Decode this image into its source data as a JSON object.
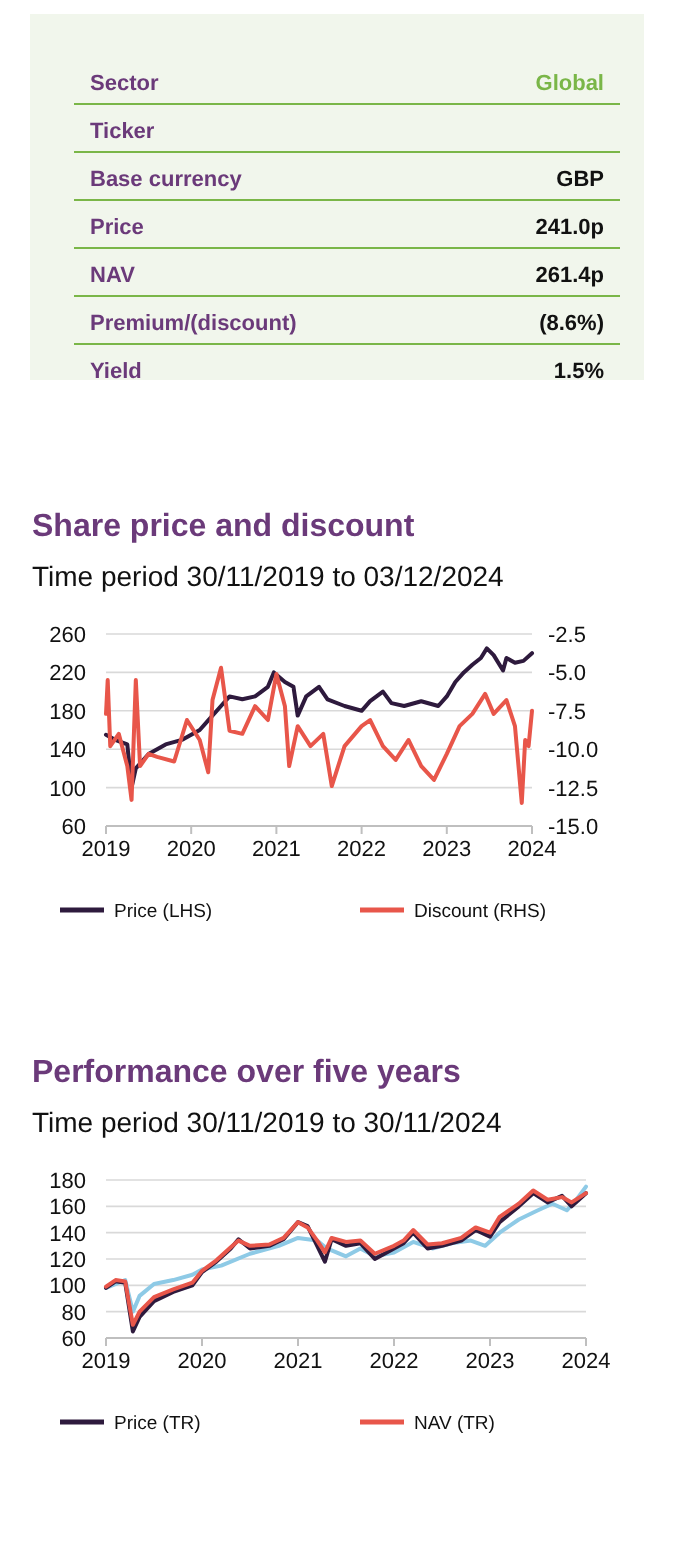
{
  "chart_data": [
    {
      "type": "other",
      "categories": [
        "Sector",
        "Ticker",
        "Base currency",
        "Price",
        "NAV",
        "Premium/(discount)",
        "Yield"
      ],
      "value_labels": [
        "Global",
        null,
        "GBP",
        "241.0p",
        "261.4p",
        "(8.6%)",
        "1.5%"
      ]
    },
    {
      "type": "line",
      "title": "Share price and discount",
      "subtitle": "Time period 30/11/2019 to 03/12/2024",
      "xlim": [
        2019,
        2024
      ],
      "xticks": [
        2019,
        2020,
        2021,
        2022,
        2023,
        2024
      ],
      "ylim": [
        60,
        260
      ],
      "yticks": [
        60,
        100,
        140,
        180,
        220,
        260
      ],
      "y2lim": [
        -15,
        -2.5
      ],
      "y2ticks": [
        {
          "value": -15,
          "label": "-15.0"
        },
        -12.5,
        {
          "value": -10,
          "label": "-10.0"
        },
        -7.5,
        {
          "value": -5,
          "label": "-5.0"
        },
        -2.5
      ],
      "grid": "y",
      "legend": "bottom",
      "series": [
        {
          "name": "Price (LHS)",
          "color": "#2e1a3d",
          "x": [
            2019.0,
            2019.1,
            2019.25,
            2019.3,
            2019.35,
            2019.5,
            2019.7,
            2019.9,
            2020.1,
            2020.2,
            2020.35,
            2020.45,
            2020.6,
            2020.75,
            2020.9,
            2020.97,
            2021.1,
            2021.2,
            2021.25,
            2021.35,
            2021.5,
            2021.6,
            2021.8,
            2022.0,
            2022.1,
            2022.25,
            2022.35,
            2022.5,
            2022.7,
            2022.9,
            2023.0,
            2023.1,
            2023.2,
            2023.3,
            2023.4,
            2023.47,
            2023.55,
            2023.66,
            2023.7,
            2023.8,
            2023.9,
            2024.0
          ],
          "values": [
            155,
            150,
            145,
            100,
            120,
            135,
            145,
            150,
            160,
            170,
            185,
            195,
            192,
            195,
            205,
            220,
            210,
            205,
            175,
            195,
            205,
            192,
            185,
            180,
            190,
            200,
            188,
            185,
            190,
            185,
            195,
            210,
            220,
            228,
            235,
            245,
            238,
            222,
            235,
            230,
            232,
            240
          ]
        },
        {
          "name": "Discount (RHS)",
          "color": "#e8564a",
          "axis": "y2",
          "x": [
            2019.0,
            2019.02,
            2019.05,
            2019.15,
            2019.25,
            2019.3,
            2019.35,
            2019.4,
            2019.5,
            2019.6,
            2019.8,
            2019.95,
            2020.1,
            2020.2,
            2020.25,
            2020.35,
            2020.45,
            2020.6,
            2020.75,
            2020.9,
            2021.0,
            2021.1,
            2021.15,
            2021.25,
            2021.4,
            2021.55,
            2021.65,
            2021.8,
            2022.0,
            2022.1,
            2022.25,
            2022.4,
            2022.55,
            2022.7,
            2022.85,
            2023.0,
            2023.15,
            2023.3,
            2023.45,
            2023.55,
            2023.7,
            2023.8,
            2023.88,
            2023.92,
            2023.96,
            2024.0
          ],
          "values": [
            -7.7,
            -5.5,
            -9.8,
            -9,
            -11.1,
            -13.3,
            -5.5,
            -11.1,
            -10.3,
            -10.5,
            -10.8,
            -8.1,
            -9.4,
            -11.5,
            -6.8,
            -4.7,
            -8.8,
            -9,
            -7.2,
            -8.1,
            -5.1,
            -7.2,
            -11.1,
            -8.5,
            -9.8,
            -9,
            -12.4,
            -9.8,
            -8.5,
            -8.1,
            -9.8,
            -10.7,
            -9.4,
            -11.1,
            -12,
            -10.3,
            -8.5,
            -7.7,
            -6.4,
            -7.7,
            -6.8,
            -8.5,
            -13.5,
            -9.4,
            -9.8,
            -7.5
          ]
        }
      ]
    },
    {
      "type": "line",
      "title": "Performance over five years",
      "subtitle": "Time period 30/11/2019 to 30/11/2024",
      "xlim": [
        2019,
        2024
      ],
      "xticks": [
        2019,
        2020,
        2021,
        2022,
        2023,
        2024
      ],
      "ylim": [
        60,
        180
      ],
      "yticks": [
        60,
        80,
        100,
        120,
        140,
        160,
        180
      ],
      "grid": "y",
      "legend": "bottom",
      "series": [
        {
          "color": "#8ecae6",
          "x": [
            2019.0,
            2019.2,
            2019.28,
            2019.35,
            2019.5,
            2019.7,
            2019.9,
            2020.0,
            2020.2,
            2020.5,
            2020.8,
            2021.0,
            2021.2,
            2021.3,
            2021.5,
            2021.65,
            2021.8,
            2022.0,
            2022.2,
            2022.4,
            2022.6,
            2022.8,
            2022.95,
            2023.1,
            2023.3,
            2023.5,
            2023.65,
            2023.8,
            2023.9,
            2024.0
          ],
          "values": [
            98,
            104,
            80,
            92,
            101,
            104,
            108,
            112,
            115,
            124,
            130,
            136,
            134,
            128,
            122,
            128,
            122,
            125,
            133,
            128,
            132,
            134,
            130,
            140,
            150,
            157,
            162,
            157,
            165,
            175
          ]
        },
        {
          "name": "Price (TR)",
          "color": "#2e1a3d",
          "x": [
            2019.0,
            2019.1,
            2019.2,
            2019.28,
            2019.35,
            2019.5,
            2019.7,
            2019.9,
            2020.0,
            2020.15,
            2020.3,
            2020.38,
            2020.5,
            2020.7,
            2020.85,
            2021.0,
            2021.1,
            2021.2,
            2021.28,
            2021.35,
            2021.5,
            2021.65,
            2021.8,
            2022.0,
            2022.1,
            2022.2,
            2022.35,
            2022.5,
            2022.7,
            2022.85,
            2023.0,
            2023.1,
            2023.3,
            2023.45,
            2023.6,
            2023.75,
            2023.85,
            2024.0
          ],
          "values": [
            98,
            103,
            102,
            65,
            76,
            88,
            95,
            100,
            110,
            118,
            128,
            135,
            128,
            130,
            135,
            148,
            145,
            130,
            118,
            135,
            130,
            132,
            120,
            128,
            132,
            140,
            128,
            130,
            134,
            142,
            137,
            148,
            160,
            170,
            163,
            168,
            160,
            170
          ]
        },
        {
          "name": "NAV (TR)",
          "color": "#e8564a",
          "x": [
            2019.0,
            2019.1,
            2019.2,
            2019.28,
            2019.35,
            2019.5,
            2019.7,
            2019.9,
            2020.0,
            2020.15,
            2020.3,
            2020.38,
            2020.5,
            2020.7,
            2020.85,
            2021.0,
            2021.1,
            2021.2,
            2021.28,
            2021.35,
            2021.5,
            2021.65,
            2021.8,
            2022.0,
            2022.1,
            2022.2,
            2022.35,
            2022.5,
            2022.7,
            2022.85,
            2023.0,
            2023.1,
            2023.3,
            2023.45,
            2023.6,
            2023.75,
            2023.85,
            2024.0
          ],
          "values": [
            99,
            104,
            103,
            70,
            80,
            91,
            97,
            102,
            111,
            119,
            129,
            134,
            130,
            131,
            136,
            148,
            144,
            134,
            125,
            136,
            133,
            134,
            124,
            130,
            134,
            142,
            131,
            132,
            136,
            144,
            140,
            152,
            162,
            172,
            165,
            167,
            163,
            170
          ]
        }
      ]
    }
  ]
}
